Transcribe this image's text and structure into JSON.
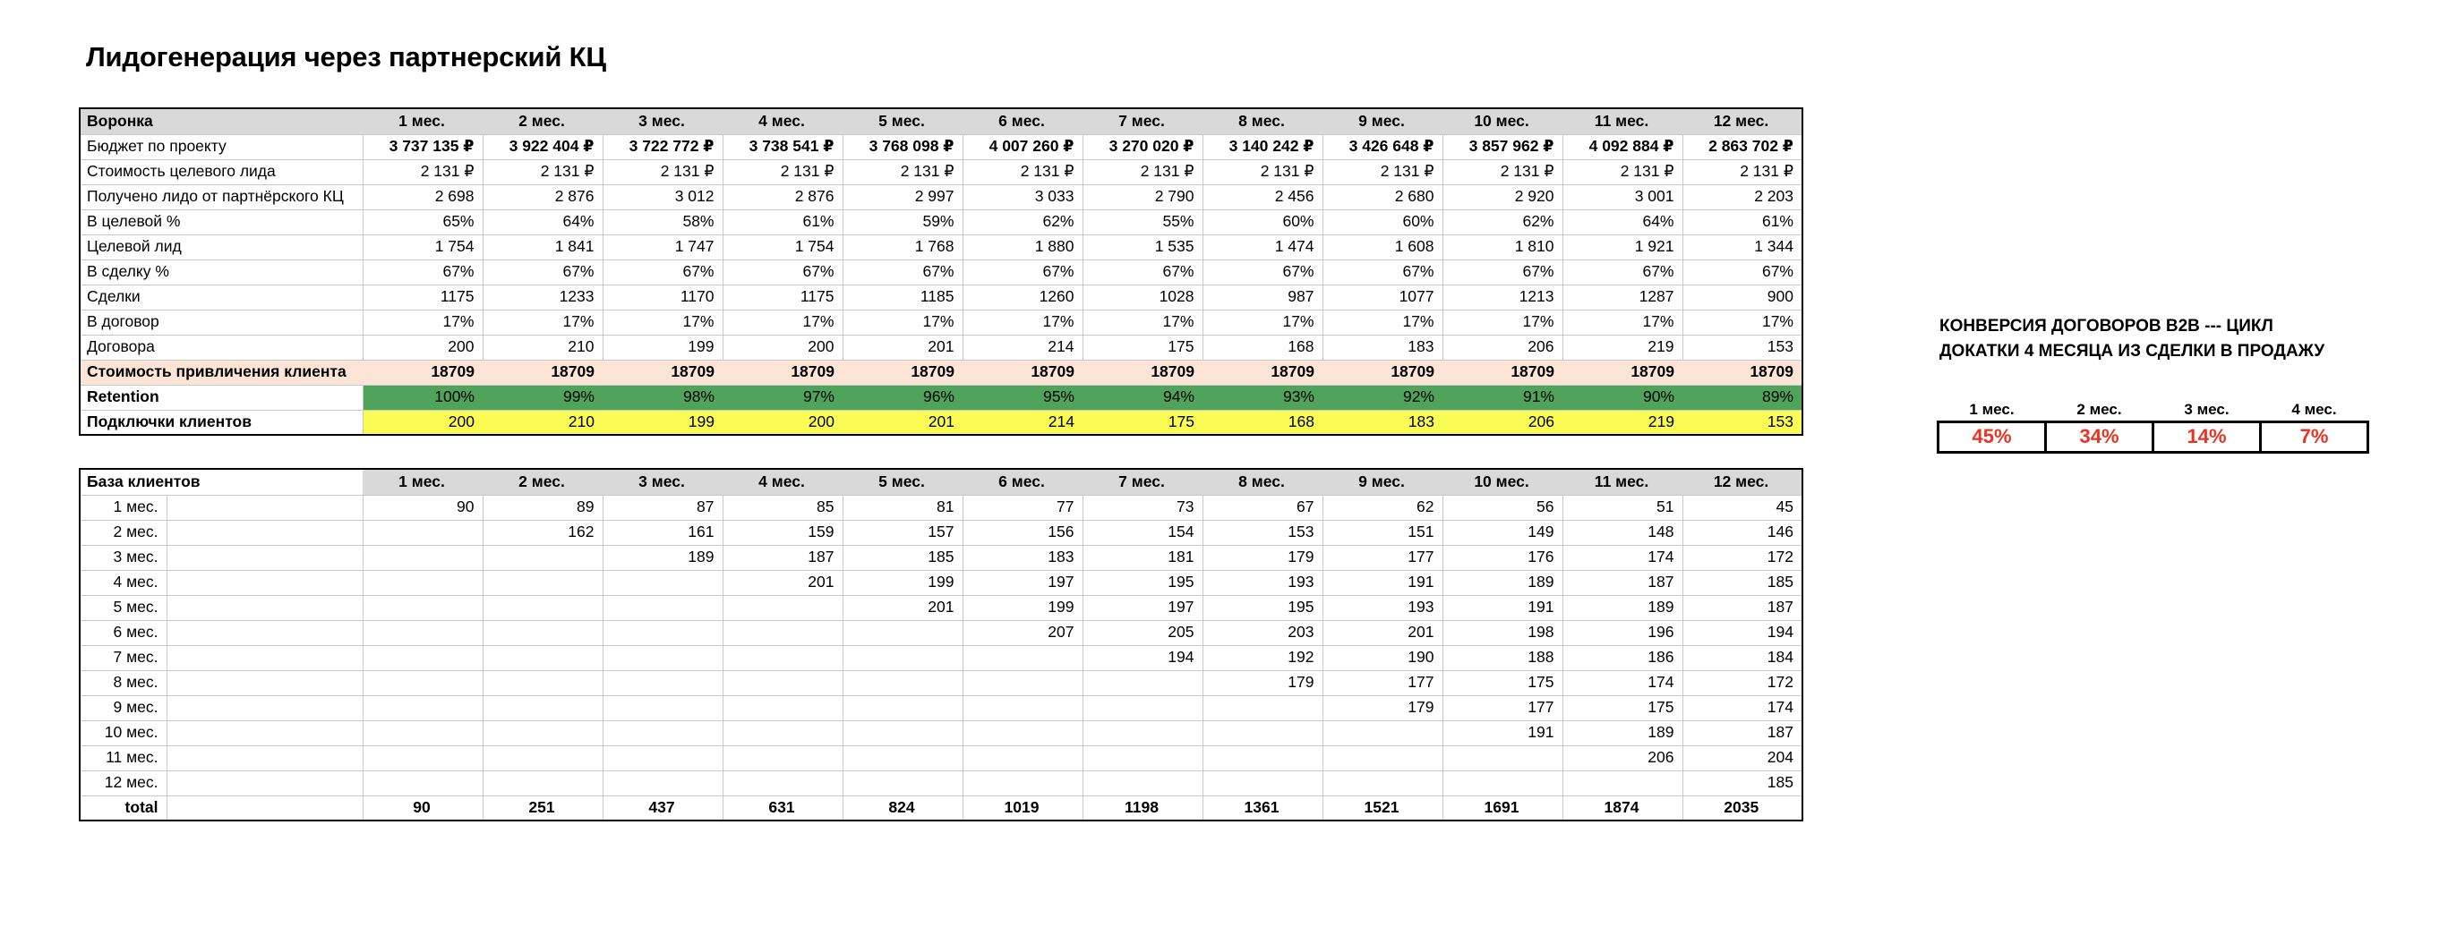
{
  "title": "Лидогенерация через партнерский КЦ",
  "colors": {
    "header_bg": "#d9d9d9",
    "grid_line": "#c9c9c9",
    "cac_bg": "#fce5d6",
    "retention_bg": "#50a35a",
    "connections_bg": "#fbfb55",
    "value_red": "#eb3223"
  },
  "funnel": {
    "headers": [
      "Воронка",
      "1 мес.",
      "2 мес.",
      "3 мес.",
      "4 мес.",
      "5 мес.",
      "6 мес.",
      "7 мес.",
      "8 мес.",
      "9 мес.",
      "10 мес.",
      "11 мес.",
      "12 мес."
    ],
    "rows": [
      {
        "label": "Бюджет по проекту",
        "values": [
          "3 737 135 ₽",
          "3 922 404 ₽",
          "3 722 772 ₽",
          "3 738 541 ₽",
          "3 768 098 ₽",
          "4 007 260 ₽",
          "3 270 020 ₽",
          "3 140 242 ₽",
          "3 426 648 ₽",
          "3 857 962 ₽",
          "4 092 884 ₽",
          "2 863 702 ₽"
        ]
      },
      {
        "label": "Стоимость целевого лида",
        "values": [
          "2 131 ₽",
          "2 131 ₽",
          "2 131 ₽",
          "2 131 ₽",
          "2 131 ₽",
          "2 131 ₽",
          "2 131 ₽",
          "2 131 ₽",
          "2 131 ₽",
          "2 131 ₽",
          "2 131 ₽",
          "2 131 ₽"
        ]
      },
      {
        "label": "Получено лидо от партнёрского КЦ",
        "values": [
          "2 698",
          "2 876",
          "3 012",
          "2 876",
          "2 997",
          "3 033",
          "2 790",
          "2 456",
          "2 680",
          "2 920",
          "3 001",
          "2 203"
        ]
      },
      {
        "label": "В целевой %",
        "values": [
          "65%",
          "64%",
          "58%",
          "61%",
          "59%",
          "62%",
          "55%",
          "60%",
          "60%",
          "62%",
          "64%",
          "61%"
        ]
      },
      {
        "label": "Целевой лид",
        "values": [
          "1 754",
          "1 841",
          "1 747",
          "1 754",
          "1 768",
          "1 880",
          "1 535",
          "1 474",
          "1 608",
          "1 810",
          "1 921",
          "1 344"
        ]
      },
      {
        "label": "В сделку %",
        "values": [
          "67%",
          "67%",
          "67%",
          "67%",
          "67%",
          "67%",
          "67%",
          "67%",
          "67%",
          "67%",
          "67%",
          "67%"
        ]
      },
      {
        "label": "Сделки",
        "values": [
          "1175",
          "1233",
          "1170",
          "1175",
          "1185",
          "1260",
          "1028",
          "987",
          "1077",
          "1213",
          "1287",
          "900"
        ]
      },
      {
        "label": "В договор",
        "values": [
          "17%",
          "17%",
          "17%",
          "17%",
          "17%",
          "17%",
          "17%",
          "17%",
          "17%",
          "17%",
          "17%",
          "17%"
        ]
      },
      {
        "label": "Договора",
        "values": [
          "200",
          "210",
          "199",
          "200",
          "201",
          "214",
          "175",
          "168",
          "183",
          "206",
          "219",
          "153"
        ]
      },
      {
        "label": "Стоимость привличения клиента",
        "values": [
          "18709",
          "18709",
          "18709",
          "18709",
          "18709",
          "18709",
          "18709",
          "18709",
          "18709",
          "18709",
          "18709",
          "18709"
        ]
      },
      {
        "label": "Retention",
        "values": [
          "100%",
          "99%",
          "98%",
          "97%",
          "96%",
          "95%",
          "94%",
          "93%",
          "92%",
          "91%",
          "90%",
          "89%"
        ]
      },
      {
        "label": "Подключки клиентов",
        "values": [
          "200",
          "210",
          "199",
          "200",
          "201",
          "214",
          "175",
          "168",
          "183",
          "206",
          "219",
          "153"
        ]
      }
    ]
  },
  "base": {
    "headers": [
      "База клиентов",
      "1 мес.",
      "2 мес.",
      "3 мес.",
      "4 мес.",
      "5 мес.",
      "6 мес.",
      "7 мес.",
      "8 мес.",
      "9 мес.",
      "10 мес.",
      "11 мес.",
      "12 мес."
    ],
    "rows": [
      {
        "label": "1 мес.",
        "values": [
          "90",
          "89",
          "87",
          "85",
          "81",
          "77",
          "73",
          "67",
          "62",
          "56",
          "51",
          "45"
        ]
      },
      {
        "label": "2 мес.",
        "values": [
          "",
          "162",
          "161",
          "159",
          "157",
          "156",
          "154",
          "153",
          "151",
          "149",
          "148",
          "146"
        ]
      },
      {
        "label": "3 мес.",
        "values": [
          "",
          "",
          "189",
          "187",
          "185",
          "183",
          "181",
          "179",
          "177",
          "176",
          "174",
          "172"
        ]
      },
      {
        "label": "4 мес.",
        "values": [
          "",
          "",
          "",
          "201",
          "199",
          "197",
          "195",
          "193",
          "191",
          "189",
          "187",
          "185"
        ]
      },
      {
        "label": "5 мес.",
        "values": [
          "",
          "",
          "",
          "",
          "201",
          "199",
          "197",
          "195",
          "193",
          "191",
          "189",
          "187"
        ]
      },
      {
        "label": "6 мес.",
        "values": [
          "",
          "",
          "",
          "",
          "",
          "207",
          "205",
          "203",
          "201",
          "198",
          "196",
          "194"
        ]
      },
      {
        "label": "7 мес.",
        "values": [
          "",
          "",
          "",
          "",
          "",
          "",
          "194",
          "192",
          "190",
          "188",
          "186",
          "184"
        ]
      },
      {
        "label": "8 мес.",
        "values": [
          "",
          "",
          "",
          "",
          "",
          "",
          "",
          "179",
          "177",
          "175",
          "174",
          "172"
        ]
      },
      {
        "label": "9 мес.",
        "values": [
          "",
          "",
          "",
          "",
          "",
          "",
          "",
          "",
          "179",
          "177",
          "175",
          "174"
        ]
      },
      {
        "label": "10 мес.",
        "values": [
          "",
          "",
          "",
          "",
          "",
          "",
          "",
          "",
          "",
          "191",
          "189",
          "187"
        ]
      },
      {
        "label": "11 мес.",
        "values": [
          "",
          "",
          "",
          "",
          "",
          "",
          "",
          "",
          "",
          "",
          "206",
          "204"
        ]
      },
      {
        "label": "12 мес.",
        "values": [
          "",
          "",
          "",
          "",
          "",
          "",
          "",
          "",
          "",
          "",
          "",
          "185"
        ]
      },
      {
        "label": "total",
        "values": [
          "90",
          "251",
          "437",
          "631",
          "824",
          "1019",
          "1198",
          "1361",
          "1521",
          "1691",
          "1874",
          "2035"
        ]
      }
    ]
  },
  "conversion": {
    "title_line1": "КОНВЕРСИЯ ДОГОВОРОВ B2B --- ЦИКЛ",
    "title_line2": "ДОКАТКИ 4 МЕСЯЦА ИЗ СДЕЛКИ В ПРОДАЖУ",
    "headers": [
      "1 мес.",
      "2 мес.",
      "3 мес.",
      "4 мес."
    ],
    "values": [
      "45%",
      "34%",
      "14%",
      "7%"
    ]
  }
}
